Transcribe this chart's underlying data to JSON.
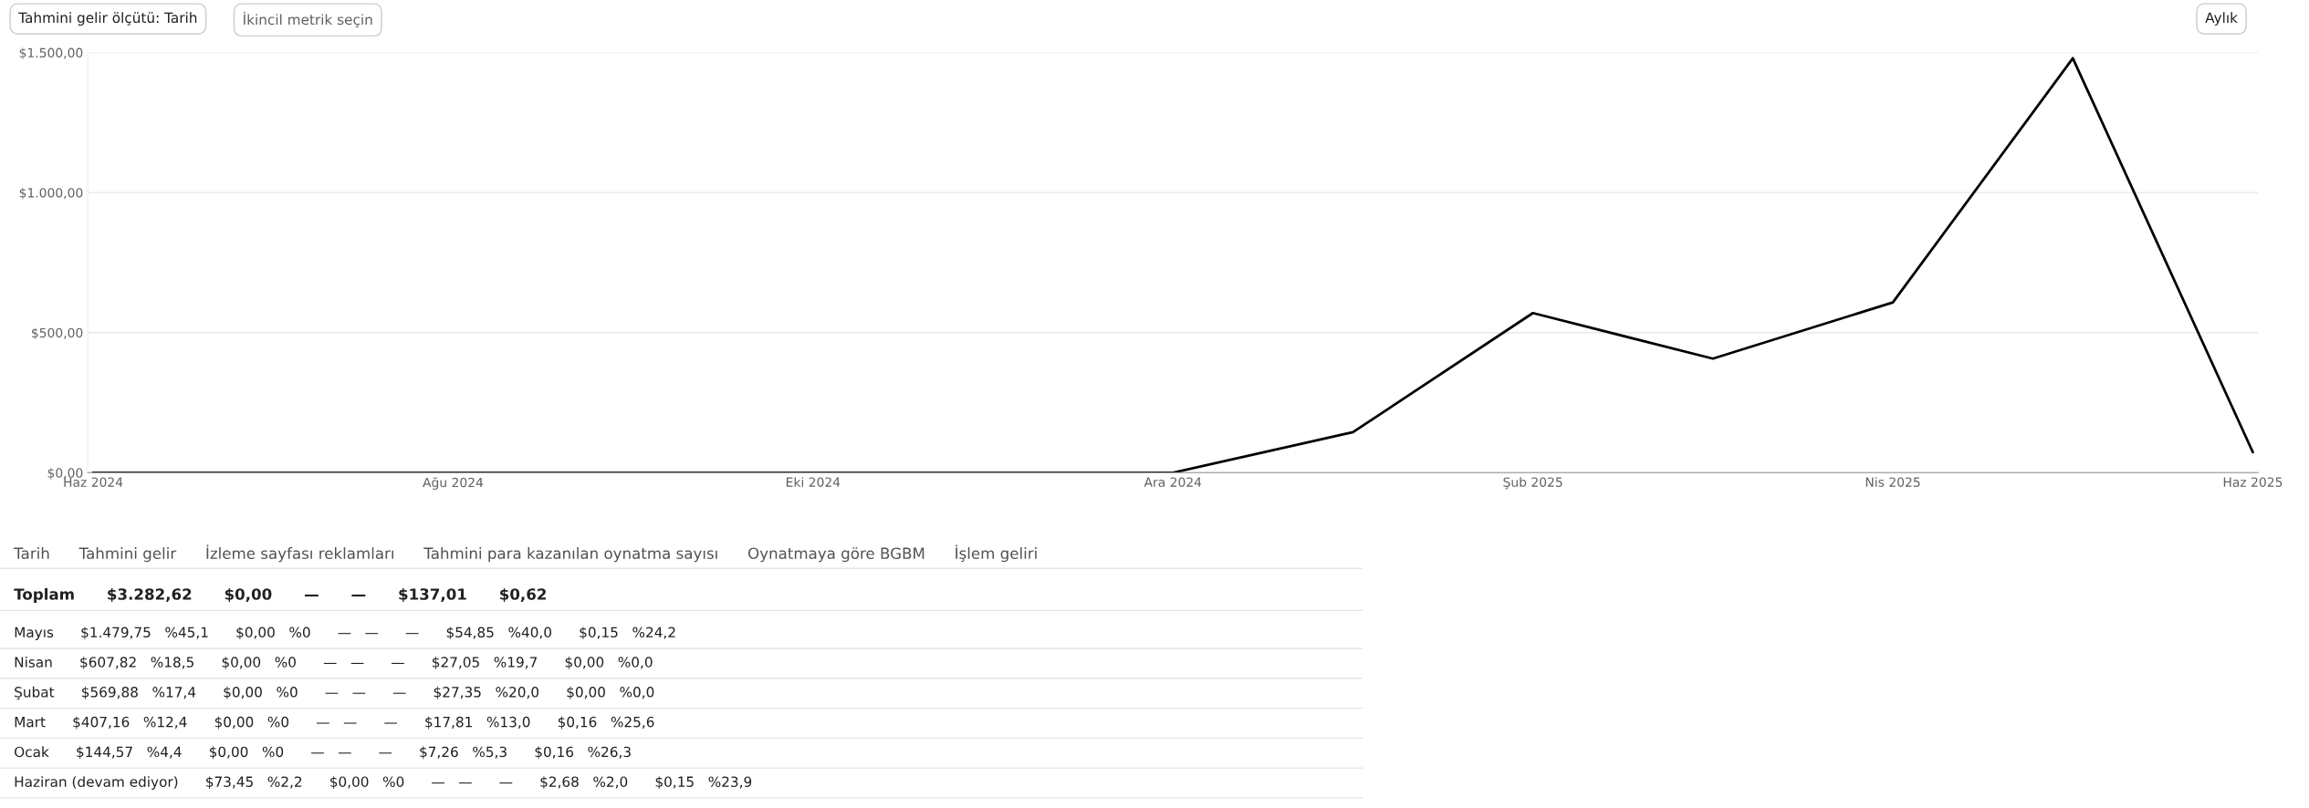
{
  "chart_data": {
    "type": "line",
    "categories": [
      "Haz 2024",
      null,
      "Ağu 2024",
      null,
      "Eki 2024",
      null,
      "Ara 2024",
      null,
      "Şub 2025",
      null,
      "Nis 2025",
      null,
      "Haz 2025"
    ],
    "series": [
      {
        "color": "#000000",
        "values": [
          0,
          0,
          0,
          0,
          0,
          0,
          0,
          144.57,
          569.88,
          407.16,
          607.82,
          1479.75,
          73.45
        ]
      }
    ],
    "ylim": [
      0,
      1500
    ],
    "yticks": [
      {
        "value": 0,
        "label": "$0,00"
      },
      {
        "value": 500,
        "label": "$500,00"
      },
      {
        "value": 1000,
        "label": "$1.000,00"
      },
      {
        "value": 1500,
        "label": "$1.500,00"
      }
    ],
    "grid": "y",
    "legend": false,
    "marker": "none",
    "line_style": "solid",
    "annotations": [
      "Tahmini gelir ölçütü: Tarih",
      "İkincil metrik seçin",
      "Aylık",
      "Tarih      Tahmini gelir      İzleme sayfası reklamları      Tahmini para kazanılan oynatma sayısı      Oynatmaya göre BGBM      İşlem geliri",
      "Toplam      $3.282,62      $0,00      —      —      $137,01      $0,62",
      "Mayıs      $1.479,75   %45,1      $0,00   %0      —   —      —      $54,85   %40,0      $0,15   %24,2",
      "Nisan      $607,82   %18,5      $0,00   %0      —   —      —      $27,05   %19,7      $0,00   %0,0",
      "Şubat      $569,88   %17,4      $0,00   %0      —   —      —      $27,35   %20,0      $0,00   %0,0",
      "Mart      $407,16   %12,4      $0,00   %0      —   —      —      $17,81   %13,0      $0,16   %25,6",
      "Ocak      $144,57   %4,4      $0,00   %0      —   —      —      $7,26   %5,3      $0,16   %26,3",
      "Haziran (devam ediyor)      $73,45   %2,2      $0,00   %0      —   —      —      $2,68   %2,0      $0,15   %23,9"
    ]
  }
}
